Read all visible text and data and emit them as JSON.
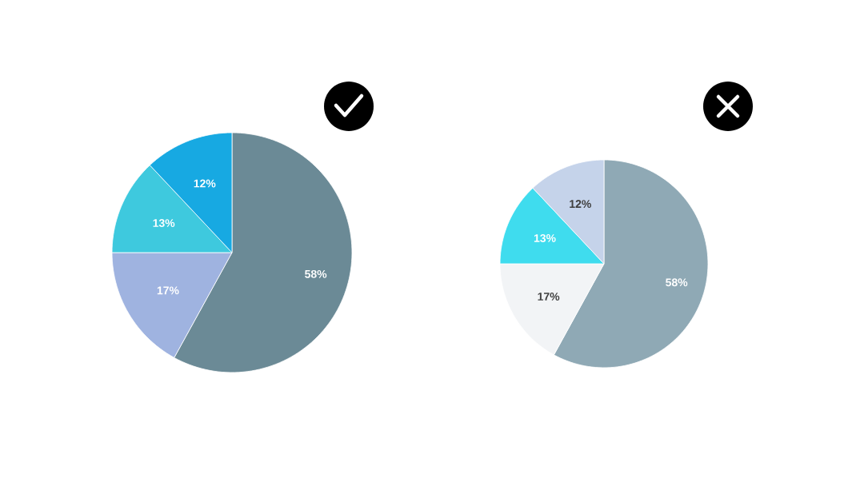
{
  "chart_data": [
    {
      "type": "pie",
      "categories": [
        null,
        null,
        null,
        null
      ],
      "values": [
        58,
        17,
        13,
        12
      ],
      "colors": [
        "#6b8a96",
        "#9fb3e0",
        "#3ec9de",
        "#17a9e2"
      ],
      "value_labels": [
        "58%",
        "17%",
        "13%",
        "12%"
      ]
    },
    {
      "type": "pie",
      "categories": [
        null,
        null,
        null,
        null
      ],
      "values": [
        58,
        17,
        13,
        12
      ],
      "colors": [
        "#8fa9b5",
        "#f2f4f6",
        "#3fdcee",
        "#c5d3ea"
      ],
      "value_labels": [
        "58%",
        "17%",
        "13%",
        "12%"
      ]
    }
  ]
}
